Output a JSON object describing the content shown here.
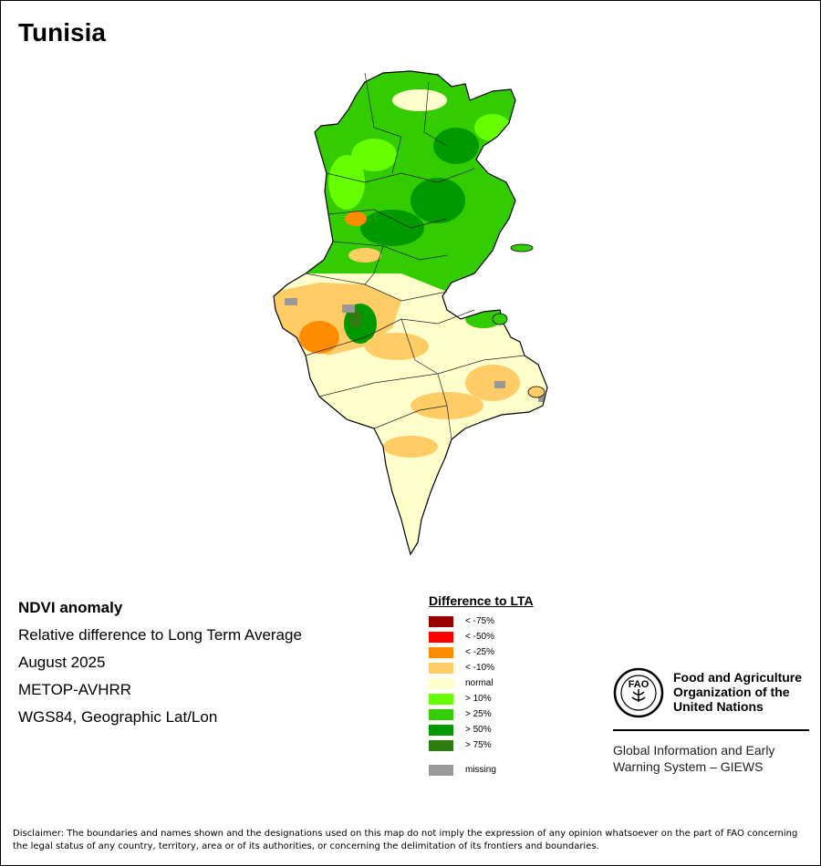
{
  "title": "Tunisia",
  "info": {
    "heading": "NDVI anomaly",
    "lines": [
      "Relative difference to Long Term Average",
      "August 2025",
      "METOP-AVHRR",
      "WGS84, Geographic Lat/Lon"
    ]
  },
  "legend": {
    "title": "Difference to LTA",
    "items": [
      {
        "label": "< -75%",
        "color": "#990000"
      },
      {
        "label": "< -50%",
        "color": "#ff0000"
      },
      {
        "label": "< -25%",
        "color": "#ff8c00"
      },
      {
        "label": "< -10%",
        "color": "#ffcc66"
      },
      {
        "label": "normal",
        "color": "#ffffcc"
      },
      {
        "label": "> 10%",
        "color": "#66ff00"
      },
      {
        "label": "> 25%",
        "color": "#33cc00"
      },
      {
        "label": "> 50%",
        "color": "#009900"
      },
      {
        "label": "> 75%",
        "color": "#2e7d10"
      }
    ],
    "missing": {
      "label": "missing",
      "color": "#999999"
    }
  },
  "fao": {
    "logo_text": "FAO",
    "name_lines": [
      "Food and Agriculture",
      "Organization of the",
      "United Nations"
    ],
    "giews_lines": [
      "Global Information and Early",
      "Warning System – GIEWS"
    ]
  },
  "disclaimer": "Disclaimer: The boundaries and names shown and the designations used on this map do not imply the expression of any opinion whatsoever on the part of FAO concerning the legal status of any country, territory, area or of its authorities, or concerning the delimitation of its frontiers and boundaries."
}
